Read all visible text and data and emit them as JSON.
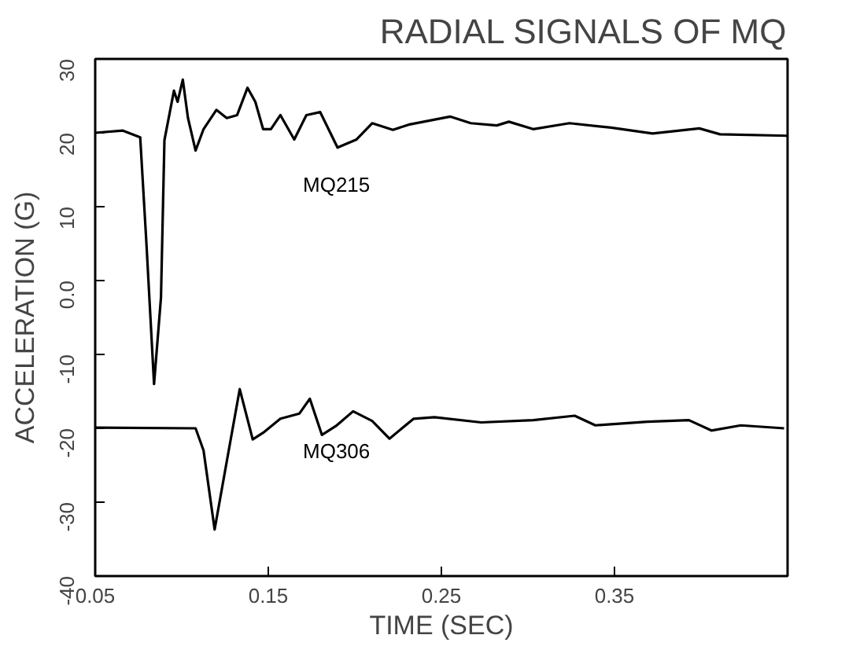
{
  "chart_data": {
    "type": "line",
    "title": "RADIAL SIGNALS OF MQ",
    "xlabel": "TIME (SEC)",
    "ylabel": "ACCELERATION (G)",
    "xlim": [
      0.05,
      0.45
    ],
    "xticks": [
      0.05,
      0.15,
      0.25,
      0.35
    ],
    "ylim": [
      -40,
      30
    ],
    "yticks": [
      -40,
      -30,
      -20,
      -10,
      {
        "value": 0,
        "label": "0.0"
      },
      10,
      20,
      30
    ],
    "grid": false,
    "marker": "none",
    "line_style": "solid",
    "series": [
      {
        "name": "MQ215",
        "color": "#000000",
        "x": [
          0.05,
          0.066,
          0.076,
          0.0796,
          0.084,
          0.088,
          0.09,
          0.0955,
          0.0976,
          0.1006,
          0.1036,
          0.108,
          0.1126,
          0.12,
          0.126,
          0.132,
          0.138,
          0.1425,
          0.147,
          0.1515,
          0.157,
          0.165,
          0.172,
          0.18,
          0.19,
          0.201,
          0.21,
          0.222,
          0.231,
          0.255,
          0.267,
          0.282,
          0.289,
          0.303,
          0.324,
          0.348,
          0.372,
          0.399,
          0.411,
          0.45
        ],
        "values": [
          20,
          20.3,
          19.4,
          5,
          -14,
          -2.3,
          19,
          25.7,
          24.2,
          27.2,
          22,
          17.6,
          20.5,
          23.1,
          22,
          22.4,
          26.1,
          24.2,
          20.5,
          20.5,
          22.4,
          19.1,
          22.4,
          22.8,
          18,
          19.1,
          21.3,
          20.4,
          21.1,
          22.2,
          21.3,
          21,
          21.5,
          20.5,
          21.3,
          20.7,
          19.9,
          20.6,
          19.8,
          19.6
        ]
      },
      {
        "name": "MQ306",
        "color": "#000000",
        "x": [
          0.05,
          0.108,
          0.1126,
          0.119,
          0.126,
          0.1335,
          0.141,
          0.147,
          0.157,
          0.168,
          0.174,
          0.181,
          0.189,
          0.199,
          0.21,
          0.22,
          0.234,
          0.246,
          0.273,
          0.303,
          0.327,
          0.339,
          0.369,
          0.393,
          0.406,
          0.423,
          0.448
        ],
        "values": [
          -19.9,
          -20,
          -23,
          -33.7,
          -24.5,
          -14.7,
          -21.5,
          -20.6,
          -18.7,
          -18,
          -16,
          -20.9,
          -19.7,
          -17.7,
          -19,
          -21.4,
          -18.7,
          -18.5,
          -19.2,
          -18.9,
          -18.3,
          -19.6,
          -19.1,
          -18.9,
          -20.3,
          -19.6,
          -20
        ]
      }
    ]
  }
}
